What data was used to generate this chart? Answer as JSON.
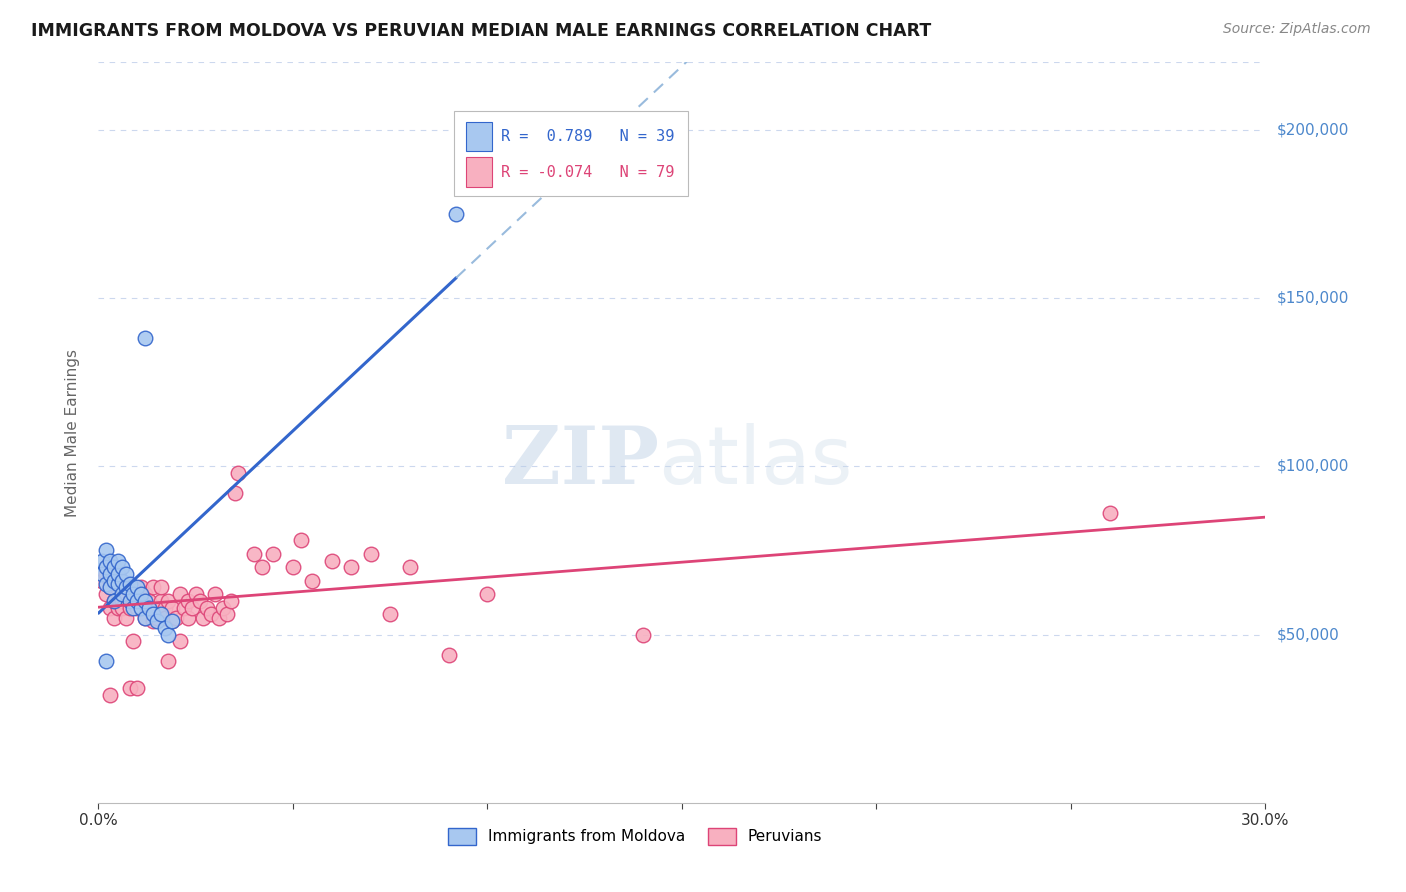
{
  "title": "IMMIGRANTS FROM MOLDOVA VS PERUVIAN MEDIAN MALE EARNINGS CORRELATION CHART",
  "source": "Source: ZipAtlas.com",
  "ylabel": "Median Male Earnings",
  "yticks": [
    0,
    50000,
    100000,
    150000,
    200000
  ],
  "ytick_labels": [
    "",
    "$50,000",
    "$100,000",
    "$150,000",
    "$200,000"
  ],
  "xlim": [
    0.0,
    0.3
  ],
  "ylim": [
    0,
    220000
  ],
  "legend1_label": "Immigrants from Moldova",
  "legend2_label": "Peruvians",
  "moldova_color": "#a8c8f0",
  "peruvian_color": "#f8b0c0",
  "trendline_moldova_color": "#3366cc",
  "trendline_peruvian_color": "#dd4477",
  "trendline_moldova_ext_color": "#99bbdd",
  "watermark_zip": "ZIP",
  "watermark_atlas": "atlas",
  "background_color": "#ffffff",
  "grid_color": "#ccd8ee",
  "moldova_points": [
    [
      0.001,
      72000
    ],
    [
      0.001,
      68000
    ],
    [
      0.002,
      75000
    ],
    [
      0.002,
      70000
    ],
    [
      0.002,
      65000
    ],
    [
      0.003,
      68000
    ],
    [
      0.003,
      64000
    ],
    [
      0.003,
      72000
    ],
    [
      0.004,
      66000
    ],
    [
      0.004,
      60000
    ],
    [
      0.004,
      70000
    ],
    [
      0.005,
      65000
    ],
    [
      0.005,
      68000
    ],
    [
      0.005,
      72000
    ],
    [
      0.006,
      62000
    ],
    [
      0.006,
      66000
    ],
    [
      0.006,
      70000
    ],
    [
      0.007,
      64000
    ],
    [
      0.007,
      68000
    ],
    [
      0.008,
      60000
    ],
    [
      0.008,
      65000
    ],
    [
      0.009,
      62000
    ],
    [
      0.009,
      58000
    ],
    [
      0.01,
      64000
    ],
    [
      0.01,
      60000
    ],
    [
      0.011,
      62000
    ],
    [
      0.011,
      58000
    ],
    [
      0.012,
      60000
    ],
    [
      0.012,
      55000
    ],
    [
      0.013,
      58000
    ],
    [
      0.014,
      56000
    ],
    [
      0.015,
      54000
    ],
    [
      0.016,
      56000
    ],
    [
      0.017,
      52000
    ],
    [
      0.018,
      50000
    ],
    [
      0.019,
      54000
    ],
    [
      0.002,
      42000
    ],
    [
      0.012,
      138000
    ],
    [
      0.092,
      175000
    ]
  ],
  "peruvian_points": [
    [
      0.001,
      66000
    ],
    [
      0.002,
      62000
    ],
    [
      0.002,
      68000
    ],
    [
      0.003,
      64000
    ],
    [
      0.003,
      58000
    ],
    [
      0.003,
      66000
    ],
    [
      0.004,
      60000
    ],
    [
      0.004,
      64000
    ],
    [
      0.004,
      55000
    ],
    [
      0.005,
      62000
    ],
    [
      0.005,
      58000
    ],
    [
      0.005,
      66000
    ],
    [
      0.006,
      60000
    ],
    [
      0.006,
      64000
    ],
    [
      0.006,
      58000
    ],
    [
      0.007,
      62000
    ],
    [
      0.007,
      55000
    ],
    [
      0.007,
      64000
    ],
    [
      0.008,
      60000
    ],
    [
      0.008,
      58000
    ],
    [
      0.009,
      64000
    ],
    [
      0.009,
      48000
    ],
    [
      0.01,
      58000
    ],
    [
      0.01,
      62000
    ],
    [
      0.011,
      64000
    ],
    [
      0.011,
      58000
    ],
    [
      0.012,
      55000
    ],
    [
      0.012,
      62000
    ],
    [
      0.013,
      60000
    ],
    [
      0.013,
      58000
    ],
    [
      0.014,
      54000
    ],
    [
      0.014,
      64000
    ],
    [
      0.015,
      55000
    ],
    [
      0.015,
      58000
    ],
    [
      0.016,
      60000
    ],
    [
      0.016,
      64000
    ],
    [
      0.017,
      58000
    ],
    [
      0.017,
      55000
    ],
    [
      0.018,
      60000
    ],
    [
      0.018,
      42000
    ],
    [
      0.019,
      58000
    ],
    [
      0.019,
      54000
    ],
    [
      0.02,
      55000
    ],
    [
      0.021,
      62000
    ],
    [
      0.021,
      48000
    ],
    [
      0.022,
      58000
    ],
    [
      0.023,
      60000
    ],
    [
      0.023,
      55000
    ],
    [
      0.024,
      58000
    ],
    [
      0.025,
      62000
    ],
    [
      0.026,
      60000
    ],
    [
      0.027,
      55000
    ],
    [
      0.028,
      58000
    ],
    [
      0.029,
      56000
    ],
    [
      0.03,
      62000
    ],
    [
      0.031,
      55000
    ],
    [
      0.032,
      58000
    ],
    [
      0.033,
      56000
    ],
    [
      0.034,
      60000
    ],
    [
      0.035,
      92000
    ],
    [
      0.036,
      98000
    ],
    [
      0.04,
      74000
    ],
    [
      0.042,
      70000
    ],
    [
      0.045,
      74000
    ],
    [
      0.05,
      70000
    ],
    [
      0.052,
      78000
    ],
    [
      0.055,
      66000
    ],
    [
      0.06,
      72000
    ],
    [
      0.065,
      70000
    ],
    [
      0.07,
      74000
    ],
    [
      0.075,
      56000
    ],
    [
      0.08,
      70000
    ],
    [
      0.09,
      44000
    ],
    [
      0.1,
      62000
    ],
    [
      0.14,
      50000
    ],
    [
      0.26,
      86000
    ],
    [
      0.003,
      32000
    ],
    [
      0.008,
      34000
    ],
    [
      0.01,
      34000
    ]
  ]
}
